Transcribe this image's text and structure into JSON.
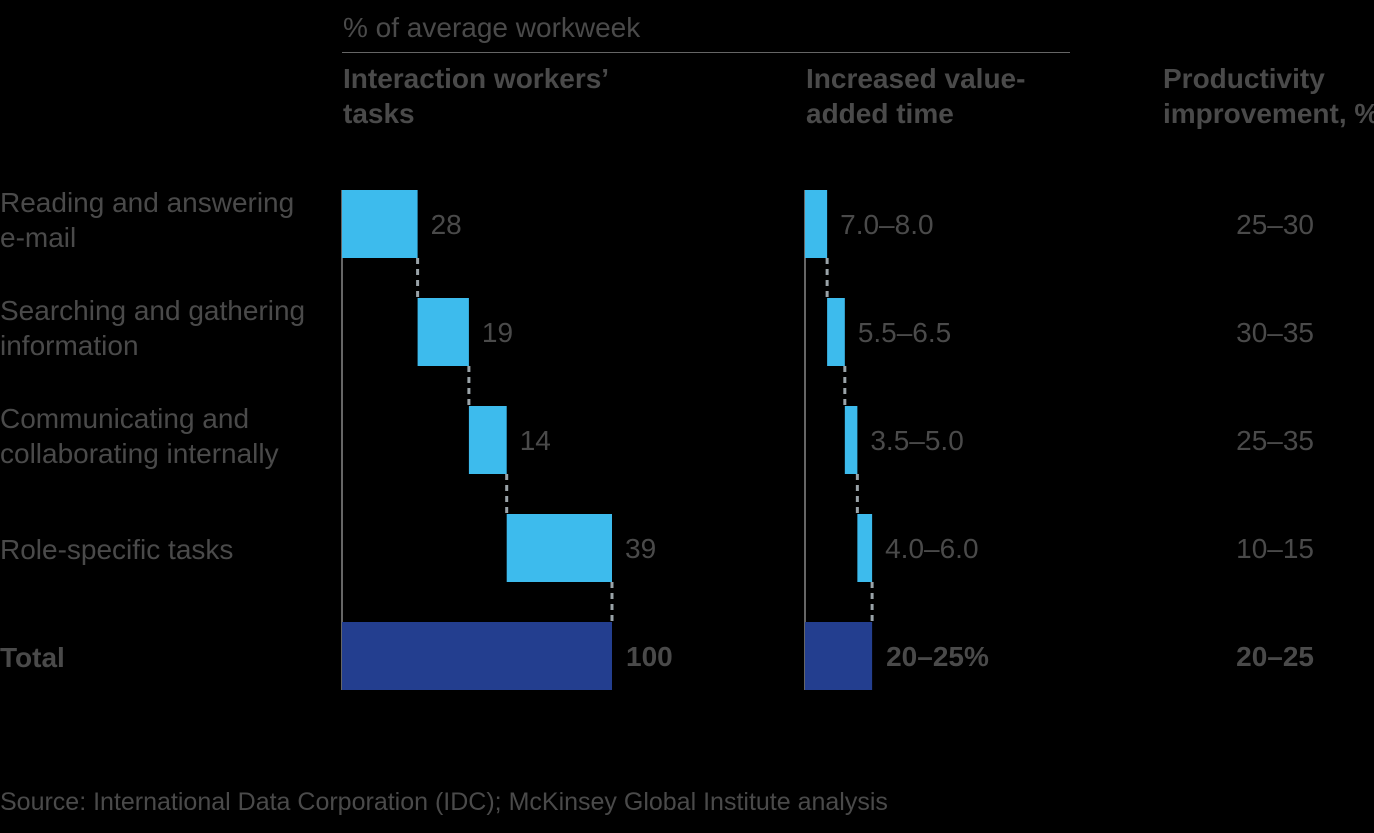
{
  "chart_data": {
    "type": "bar",
    "subtitle": "% of average workweek",
    "columns": {
      "tasks": "Interaction workers’ tasks",
      "value_added": "Increased value-added time",
      "productivity": "Productivity improvement, %"
    },
    "categories": [
      "Reading and answering e-mail",
      "Searching and gathering information",
      "Communicating and collaborating internally",
      "Role-specific tasks"
    ],
    "total_label": "Total",
    "tasks_share": {
      "values": [
        28,
        19,
        14,
        39
      ],
      "total": 100,
      "labels": [
        "28",
        "19",
        "14",
        "39"
      ],
      "total_label": "100"
    },
    "value_added_time": {
      "ranges": [
        [
          7.0,
          8.0
        ],
        [
          5.5,
          6.5
        ],
        [
          3.5,
          5.0
        ],
        [
          4.0,
          6.0
        ]
      ],
      "total_range": [
        20,
        25
      ],
      "labels": [
        "7.0–8.0",
        "5.5–6.5",
        "3.5–5.0",
        "4.0–6.0"
      ],
      "total_label": "20–25%"
    },
    "productivity_improvement": {
      "labels": [
        "25–30",
        "30–35",
        "25–35",
        "10–15"
      ],
      "total_label": "20–25"
    },
    "colors": {
      "segment": "#3dbbed",
      "total": "#233e8f",
      "text": "#4a4a4a",
      "connector": "#9aa3a8"
    },
    "source": "Source: International Data Corporation (IDC); McKinsey Global Institute analysis"
  }
}
